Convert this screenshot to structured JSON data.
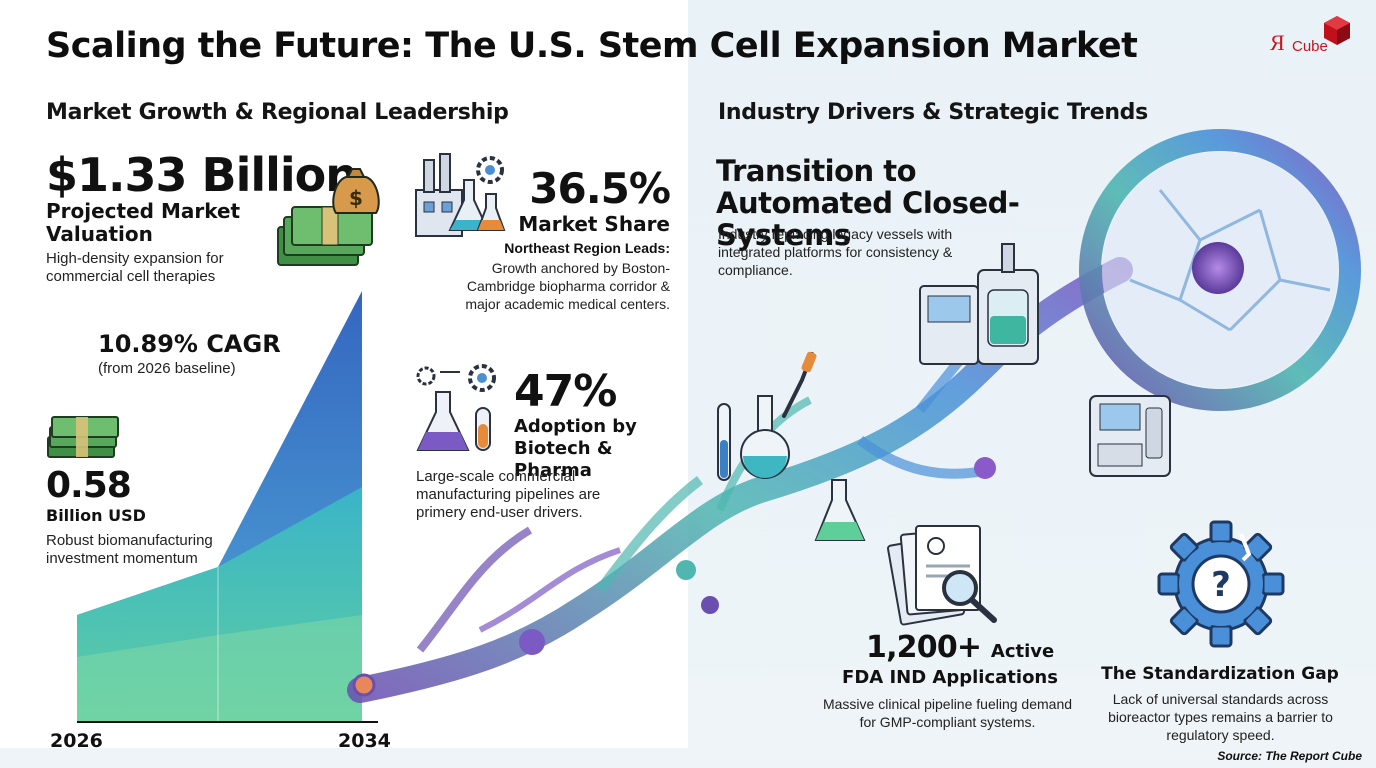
{
  "title": "Scaling the Future: The U.S. Stem Cell Expansion Market",
  "logo": {
    "mark": "Я",
    "text": "Cube",
    "brand_color": "#c9141f"
  },
  "left_section": {
    "heading": "Market Growth & Regional Leadership",
    "valuation": {
      "value": "$1.33 Billion",
      "label": "Projected Market Valuation",
      "desc": "High-density expansion for commercial cell therapies"
    },
    "cagr": {
      "value": "10.89% CAGR",
      "note": "(from 2026 baseline)"
    },
    "investment": {
      "value": "0.58",
      "unit": "Billion USD",
      "desc": "Robust biomanufacturing investment momentum"
    },
    "chart_years": {
      "start": "2026",
      "end": "2034"
    },
    "market_share": {
      "value": "36.5%",
      "label": "Market Share",
      "region": "Northeast Region Leads:",
      "desc": "Growth anchored by Boston-Cambridge biopharma corridor & major academic medical centers."
    },
    "adoption": {
      "value": "47%",
      "label": "Adoption by Biotech & Pharma",
      "desc": "Large-scale commercial manufacturing pipelines are primery end-user drivers."
    }
  },
  "right_section": {
    "heading": "Industry Drivers & Strategic Trends",
    "automation": {
      "title": "Transition to Automated Closed-Systems",
      "desc": "Industry replacing legacy vessels with integrated platforms for consistency & compliance."
    },
    "fda": {
      "value": "1,200+",
      "suffix": "Active",
      "label": "FDA IND Applications",
      "desc": "Massive clinical pipeline fueling demand for GMP-compliant systems."
    },
    "standardization": {
      "title": "The Standardization Gap",
      "desc": "Lack of universal standards across bioreactor types remains a barrier to regulatory speed."
    }
  },
  "source": "Source: The Report Cube",
  "colors": {
    "chart_blue": "#3d7fc6",
    "chart_teal": "#3fb7c2",
    "chart_green": "#5fcf9a",
    "neuron_purple": "#6a4fb0",
    "money_green": "#3f8f45"
  }
}
